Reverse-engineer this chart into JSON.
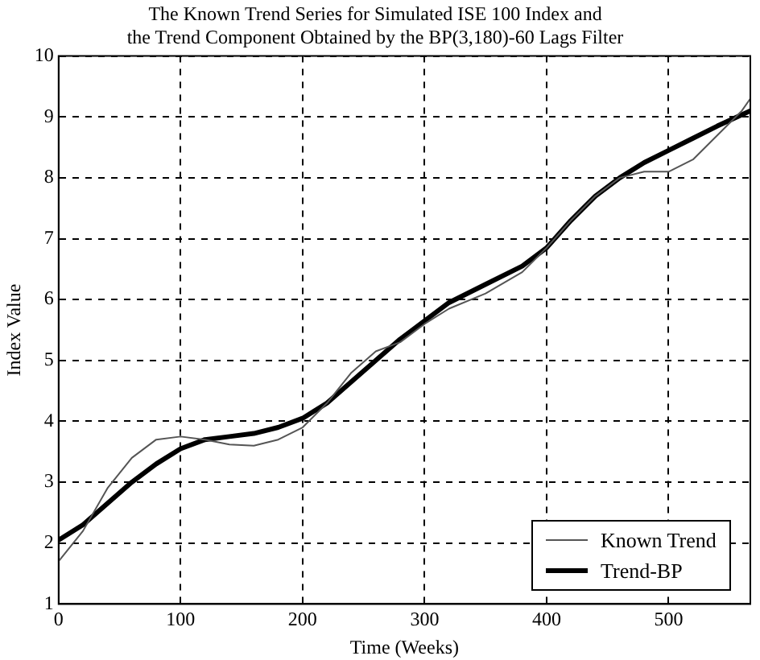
{
  "chart_data": {
    "type": "line",
    "title": "The Known Trend Series for Simulated ISE 100 Index and\nthe Trend Component Obtained by the BP(3,180)-60 Lags Filter",
    "xlabel": "Time (Weeks)",
    "ylabel": "Index Value",
    "xlim": [
      0,
      567
    ],
    "xticks": [
      0,
      100,
      200,
      300,
      400,
      500
    ],
    "ylim": [
      1,
      10
    ],
    "yticks": [
      1,
      2,
      3,
      4,
      5,
      6,
      7,
      8,
      9,
      10
    ],
    "grid": true,
    "legend": "bottom right",
    "line_style": "solid",
    "marker": "none",
    "series": [
      {
        "name": "Known Trend",
        "color": "#555555",
        "x": [
          0,
          20,
          40,
          60,
          80,
          100,
          120,
          140,
          160,
          180,
          200,
          220,
          240,
          260,
          280,
          300,
          320,
          350,
          380,
          400,
          420,
          440,
          460,
          480,
          500,
          520,
          540,
          560,
          567
        ],
        "values": [
          1.7,
          2.2,
          2.9,
          3.4,
          3.7,
          3.75,
          3.7,
          3.62,
          3.6,
          3.7,
          3.9,
          4.3,
          4.8,
          5.15,
          5.3,
          5.6,
          5.85,
          6.1,
          6.45,
          6.85,
          7.3,
          7.7,
          8.0,
          8.1,
          8.1,
          8.3,
          8.7,
          9.1,
          9.3
        ]
      },
      {
        "name": "Trend-BP",
        "color": "#000000",
        "x": [
          0,
          20,
          40,
          60,
          80,
          100,
          120,
          140,
          160,
          180,
          200,
          220,
          240,
          260,
          280,
          300,
          320,
          350,
          380,
          400,
          420,
          440,
          460,
          480,
          500,
          520,
          540,
          567
        ],
        "values": [
          2.05,
          2.3,
          2.65,
          3.0,
          3.3,
          3.55,
          3.7,
          3.75,
          3.8,
          3.9,
          4.05,
          4.3,
          4.65,
          5.0,
          5.35,
          5.65,
          5.95,
          6.25,
          6.55,
          6.85,
          7.3,
          7.7,
          8.0,
          8.25,
          8.45,
          8.65,
          8.85,
          9.1
        ]
      }
    ]
  }
}
